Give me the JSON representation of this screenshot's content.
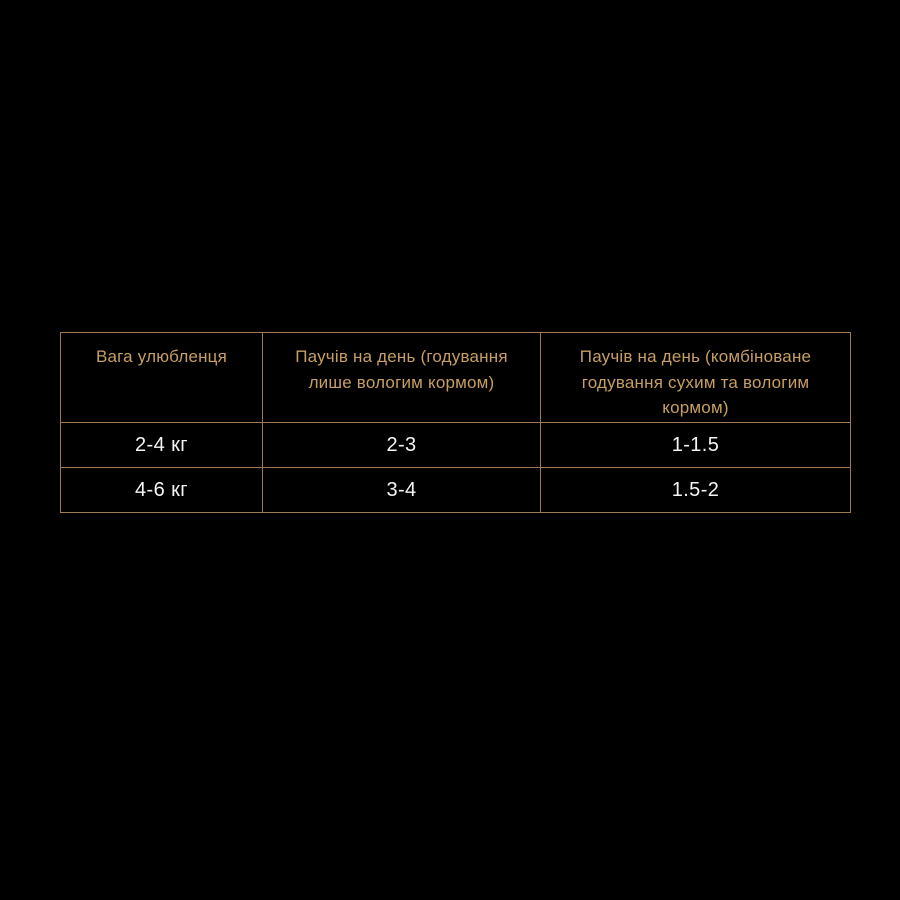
{
  "colors": {
    "background": "#000000",
    "border": "#9c7a56",
    "header_text": "#c79e63",
    "data_text": "#f4f4f4"
  },
  "table": {
    "columns_display": [
      "Вага улюбленця",
      "Паучів на день (годування\nлише вологим кормом)",
      "Паучів на день (комбіноване\nгодування сухим та вологим\nкормом)"
    ],
    "rows": [
      [
        "2-4 кг",
        "2-3",
        "1-1.5"
      ],
      [
        "4-6 кг",
        "3-4",
        "1.5-2"
      ]
    ]
  },
  "chart_data": {
    "type": "table",
    "title": "",
    "columns": [
      "Вага улюбленця",
      "Паучів на день (годування лише вологим кормом)",
      "Паучів на день (комбіноване годування сухим та вологим кормом)"
    ],
    "rows": [
      [
        "2-4 кг",
        "2-3",
        "1-1.5"
      ],
      [
        "4-6 кг",
        "3-4",
        "1.5-2"
      ]
    ]
  }
}
